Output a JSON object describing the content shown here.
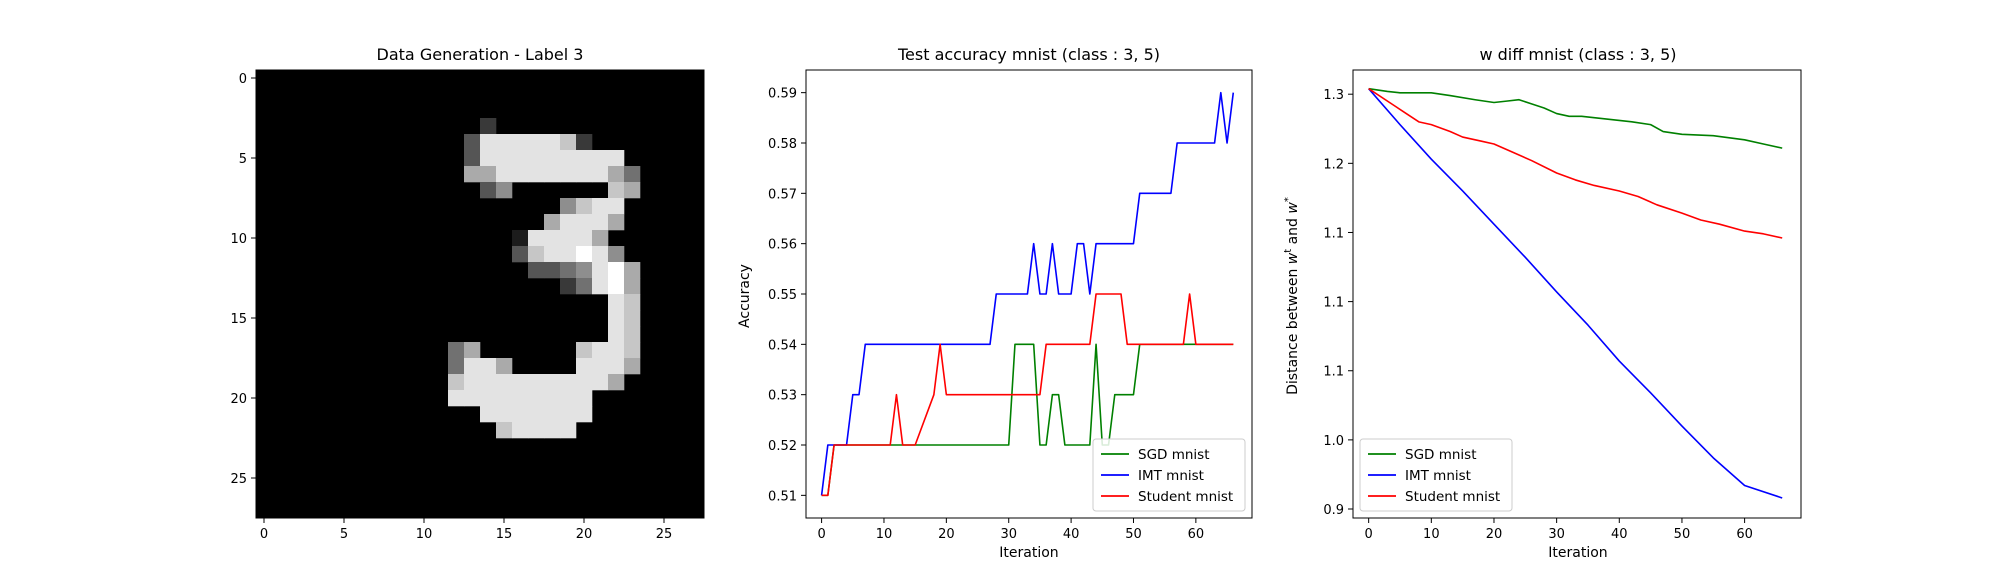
{
  "chart_data": [
    {
      "type": "heatmap",
      "title": "Data Generation - Label 3",
      "xlabel": "",
      "ylabel": "",
      "xlim": [
        -0.5,
        27.5
      ],
      "ylim": [
        27.5,
        -0.5
      ],
      "xticks": [
        0,
        5,
        10,
        15,
        20,
        25
      ],
      "yticks": [
        0,
        5,
        10,
        15,
        20,
        25
      ],
      "colormap": "gray",
      "rows": [
        "............................",
        "............................",
        "............................",
        "..............2.............",
        ".............38888872.......",
        ".............3888888888.....",
        ".............66888888864....",
        "..............35......76....",
        "...................5788.....",
        "..................68886.....",
        "................188886......",
        "................3788985.....",
        ".................3345896....",
        "...................24896....",
        "......................87....",
        "......................87....",
        "......................87....",
        "............46......7887....",
        "............4886....8886....",
        "............78888888886.....",
        "............888888888.......",
        "..............8888888.......",
        "...............78888........",
        "............................",
        "............................",
        "............................",
        "............................",
        "............................"
      ]
    },
    {
      "type": "line",
      "title": "Test accuracy mnist (class : 3, 5)",
      "xlabel": "Iteration",
      "ylabel": "Accuracy",
      "xlim": [
        -2.5,
        69
      ],
      "ylim": [
        0.5055,
        0.5945
      ],
      "xticks": [
        0,
        10,
        20,
        30,
        40,
        50,
        60
      ],
      "yticks": [
        0.51,
        0.52,
        0.53,
        0.54,
        0.55,
        0.56,
        0.57,
        0.58,
        0.59
      ],
      "legend_loc": "lower right",
      "series": [
        {
          "name": "SGD mnist",
          "color": "#008000",
          "x": [
            0,
            1,
            2,
            30,
            31,
            34,
            35,
            36,
            37,
            38,
            39,
            43,
            44,
            45,
            46,
            47,
            48,
            50,
            51,
            52,
            66
          ],
          "values": [
            0.51,
            0.51,
            0.52,
            0.52,
            0.54,
            0.54,
            0.52,
            0.52,
            0.53,
            0.53,
            0.52,
            0.52,
            0.54,
            0.52,
            0.52,
            0.53,
            0.53,
            0.53,
            0.54,
            0.54,
            0.54
          ]
        },
        {
          "name": "IMT mnist",
          "color": "#0000ff",
          "x": [
            0,
            1,
            4,
            5,
            6,
            7,
            27,
            28,
            33,
            34,
            35,
            36,
            37,
            38,
            40,
            41,
            42,
            43,
            44,
            50,
            51,
            56,
            57,
            63,
            64,
            65,
            66
          ],
          "values": [
            0.51,
            0.52,
            0.52,
            0.53,
            0.53,
            0.54,
            0.54,
            0.55,
            0.55,
            0.56,
            0.55,
            0.55,
            0.56,
            0.55,
            0.55,
            0.56,
            0.56,
            0.55,
            0.56,
            0.56,
            0.57,
            0.57,
            0.58,
            0.58,
            0.59,
            0.58,
            0.59
          ]
        },
        {
          "name": "Student mnist",
          "color": "#ff0000",
          "x": [
            0,
            1,
            2,
            11,
            12,
            13,
            14,
            15,
            18,
            19,
            20,
            34,
            35,
            36,
            43,
            44,
            48,
            49,
            58,
            59,
            60,
            66
          ],
          "values": [
            0.51,
            0.51,
            0.52,
            0.52,
            0.53,
            0.52,
            0.52,
            0.52,
            0.53,
            0.54,
            0.53,
            0.53,
            0.53,
            0.54,
            0.54,
            0.55,
            0.55,
            0.54,
            0.54,
            0.55,
            0.54,
            0.54
          ]
        }
      ]
    },
    {
      "type": "line",
      "title": "w diff mnist (class : 3, 5)",
      "xlabel": "Iteration",
      "ylabel_parts": [
        "Distance between ",
        "w",
        "t",
        " and ",
        "w",
        "*"
      ],
      "xlim": [
        -2.5,
        69
      ],
      "ylim": [
        0.9435,
        1.2675
      ],
      "xticks": [
        0,
        10,
        20,
        30,
        40,
        50,
        60
      ],
      "yticks": [
        0.95,
        1.0,
        1.05,
        1.1,
        1.15,
        1.2,
        1.25
      ],
      "legend_loc": "lower left",
      "series": [
        {
          "name": "SGD mnist",
          "color": "#008000",
          "x": [
            0,
            3,
            5,
            10,
            13,
            17,
            20,
            22,
            24,
            26,
            28,
            30,
            32,
            34,
            38,
            42,
            45,
            47,
            50,
            55,
            60,
            63,
            66
          ],
          "values": [
            1.254,
            1.252,
            1.251,
            1.251,
            1.249,
            1.246,
            1.244,
            1.245,
            1.246,
            1.243,
            1.24,
            1.236,
            1.234,
            1.234,
            1.232,
            1.23,
            1.228,
            1.223,
            1.221,
            1.22,
            1.217,
            1.214,
            1.211
          ]
        },
        {
          "name": "IMT mnist",
          "color": "#0000ff",
          "x": [
            0,
            5,
            10,
            15,
            20,
            25,
            30,
            35,
            40,
            45,
            50,
            55,
            60,
            66
          ],
          "values": [
            1.254,
            1.228,
            1.203,
            1.18,
            1.156,
            1.132,
            1.107,
            1.083,
            1.057,
            1.034,
            1.01,
            0.987,
            0.967,
            0.958
          ]
        },
        {
          "name": "Student mnist",
          "color": "#ff0000",
          "x": [
            0,
            4,
            6,
            8,
            10,
            13,
            15,
            18,
            20,
            23,
            26,
            30,
            33,
            36,
            40,
            43,
            46,
            50,
            53,
            56,
            60,
            63,
            66
          ],
          "values": [
            1.254,
            1.242,
            1.236,
            1.23,
            1.228,
            1.223,
            1.219,
            1.216,
            1.214,
            1.208,
            1.202,
            1.193,
            1.188,
            1.184,
            1.18,
            1.176,
            1.17,
            1.164,
            1.159,
            1.156,
            1.151,
            1.149,
            1.146
          ]
        }
      ]
    }
  ]
}
